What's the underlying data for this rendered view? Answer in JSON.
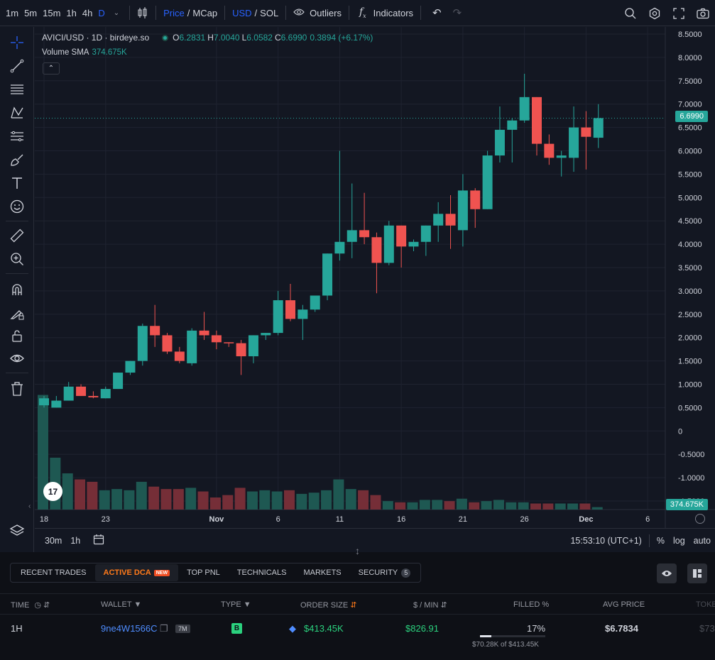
{
  "toolbar": {
    "timeframes": [
      "1m",
      "5m",
      "15m",
      "1h",
      "4h",
      "D"
    ],
    "price_label": "Price",
    "mcap_label": "MCap",
    "usd_label": "USD",
    "sol_label": "SOL",
    "outliers_label": "Outliers",
    "indicators_label": "Indicators",
    "slash": "/"
  },
  "legend": {
    "symbol": "AVICI/USD · 1D · birdeye.so",
    "o_key": "O",
    "o_val": "6.2831",
    "h_key": "H",
    "h_val": "7.0040",
    "l_key": "L",
    "l_val": "6.0582",
    "c_key": "C",
    "c_val": "6.6990",
    "change": "0.3894 (+6.17%)",
    "volume_label": "Volume SMA",
    "volume_val": "374.675K"
  },
  "price_tag": "6.6990",
  "volume_tag": "374.675K",
  "bottom_bar": {
    "left": [
      "30m",
      "1h"
    ],
    "clock": "15:53:10 (UTC+1)",
    "pct": "%",
    "log": "log",
    "auto": "auto"
  },
  "tabs": [
    {
      "label": "RECENT TRADES"
    },
    {
      "label": "ACTIVE DCA",
      "badge": "NEW"
    },
    {
      "label": "TOP PNL"
    },
    {
      "label": "TECHNICALS"
    },
    {
      "label": "MARKETS"
    },
    {
      "label": "SECURITY",
      "count": "5"
    }
  ],
  "table": {
    "headers": {
      "time": "TIME",
      "wallet": "WALLET",
      "type": "TYPE",
      "order_size": "ORDER SIZE",
      "per_min": "$ / MIN",
      "filled": "FILLED %",
      "avg_price": "AVG PRICE",
      "token": "TOKE"
    },
    "row": {
      "time": "1H",
      "wallet": "9ne4W1566C",
      "wallet_tag": "7M",
      "type": "B",
      "order_size": "$413.45K",
      "per_min": "$826.91",
      "filled": "17%",
      "filled_fraction": 0.17,
      "filled_detail": "$70.28K of $413.45K",
      "avg_price": "$6.7834",
      "token": "$73"
    }
  },
  "colors": {
    "up": "#26a69a",
    "down": "#ef5350",
    "accent": "#2962ff",
    "tab_active": "#ff7a1a"
  },
  "chart_data": {
    "type": "candlestick",
    "y_ticks": [
      "8.5000",
      "8.0000",
      "7.5000",
      "7.0000",
      "6.5000",
      "6.0000",
      "5.5000",
      "5.0000",
      "4.5000",
      "4.0000",
      "3.5000",
      "3.0000",
      "2.5000",
      "2.0000",
      "1.5000",
      "1.0000",
      "0.5000",
      "0",
      "-0.5000",
      "-1.0000",
      "-1.5000"
    ],
    "x_ticks": [
      "18",
      "23",
      "Nov",
      "6",
      "11",
      "16",
      "21",
      "26",
      "Dec",
      "6"
    ],
    "ylim": [
      -1.5,
      8.5
    ],
    "candles": [
      {
        "o": 0.55,
        "h": 0.75,
        "l": 0.5,
        "c": 0.7
      },
      {
        "o": 0.5,
        "h": 0.75,
        "l": 0.5,
        "c": 0.65
      },
      {
        "o": 0.65,
        "h": 1.05,
        "l": 0.65,
        "c": 0.95
      },
      {
        "o": 0.95,
        "h": 1.0,
        "l": 0.75,
        "c": 0.75
      },
      {
        "o": 0.75,
        "h": 0.85,
        "l": 0.7,
        "c": 0.72
      },
      {
        "o": 0.7,
        "h": 0.95,
        "l": 0.7,
        "c": 0.9
      },
      {
        "o": 0.9,
        "h": 1.25,
        "l": 0.9,
        "c": 1.25
      },
      {
        "o": 1.25,
        "h": 1.5,
        "l": 1.2,
        "c": 1.5
      },
      {
        "o": 1.5,
        "h": 2.3,
        "l": 1.4,
        "c": 2.25
      },
      {
        "o": 2.25,
        "h": 2.7,
        "l": 1.8,
        "c": 2.05
      },
      {
        "o": 2.05,
        "h": 2.1,
        "l": 1.65,
        "c": 1.7
      },
      {
        "o": 1.7,
        "h": 1.8,
        "l": 1.45,
        "c": 1.5
      },
      {
        "o": 1.45,
        "h": 2.2,
        "l": 1.4,
        "c": 2.15
      },
      {
        "o": 2.15,
        "h": 2.55,
        "l": 1.95,
        "c": 2.05
      },
      {
        "o": 2.05,
        "h": 2.15,
        "l": 1.75,
        "c": 1.9
      },
      {
        "o": 1.9,
        "h": 1.9,
        "l": 1.8,
        "c": 1.88
      },
      {
        "o": 1.88,
        "h": 1.95,
        "l": 1.2,
        "c": 1.6
      },
      {
        "o": 1.6,
        "h": 2.05,
        "l": 1.45,
        "c": 2.05
      },
      {
        "o": 2.05,
        "h": 2.1,
        "l": 1.95,
        "c": 2.1
      },
      {
        "o": 2.1,
        "h": 3.0,
        "l": 2.05,
        "c": 2.8
      },
      {
        "o": 2.8,
        "h": 3.15,
        "l": 2.35,
        "c": 2.4
      },
      {
        "o": 2.4,
        "h": 2.7,
        "l": 1.95,
        "c": 2.6
      },
      {
        "o": 2.6,
        "h": 2.9,
        "l": 2.55,
        "c": 2.9
      },
      {
        "o": 2.9,
        "h": 3.8,
        "l": 2.8,
        "c": 3.8
      },
      {
        "o": 3.8,
        "h": 6.0,
        "l": 3.65,
        "c": 4.05
      },
      {
        "o": 4.05,
        "h": 5.3,
        "l": 3.7,
        "c": 4.3
      },
      {
        "o": 4.3,
        "h": 5.1,
        "l": 4.0,
        "c": 4.15
      },
      {
        "o": 4.15,
        "h": 4.25,
        "l": 2.95,
        "c": 3.6
      },
      {
        "o": 3.6,
        "h": 4.5,
        "l": 3.55,
        "c": 4.4
      },
      {
        "o": 4.4,
        "h": 4.4,
        "l": 3.5,
        "c": 3.95
      },
      {
        "o": 3.95,
        "h": 4.1,
        "l": 3.85,
        "c": 4.05
      },
      {
        "o": 4.05,
        "h": 4.4,
        "l": 3.75,
        "c": 4.4
      },
      {
        "o": 4.4,
        "h": 4.9,
        "l": 4.05,
        "c": 4.65
      },
      {
        "o": 4.65,
        "h": 5.05,
        "l": 3.9,
        "c": 4.4
      },
      {
        "o": 4.3,
        "h": 5.5,
        "l": 3.95,
        "c": 5.15
      },
      {
        "o": 5.15,
        "h": 5.2,
        "l": 4.35,
        "c": 4.75
      },
      {
        "o": 4.75,
        "h": 6.0,
        "l": 4.75,
        "c": 5.9
      },
      {
        "o": 5.9,
        "h": 6.95,
        "l": 5.75,
        "c": 6.45
      },
      {
        "o": 6.45,
        "h": 6.7,
        "l": 5.75,
        "c": 6.65
      },
      {
        "o": 6.65,
        "h": 7.65,
        "l": 6.6,
        "c": 7.15
      },
      {
        "o": 7.15,
        "h": 7.15,
        "l": 5.9,
        "c": 6.15
      },
      {
        "o": 6.15,
        "h": 6.35,
        "l": 5.7,
        "c": 5.85
      },
      {
        "o": 5.85,
        "h": 6.0,
        "l": 5.45,
        "c": 5.9
      },
      {
        "o": 5.85,
        "h": 6.95,
        "l": 5.55,
        "c": 6.5
      },
      {
        "o": 6.5,
        "h": 6.85,
        "l": 5.6,
        "c": 6.3
      },
      {
        "o": 6.28,
        "h": 7.0,
        "l": 6.06,
        "c": 6.7
      }
    ],
    "volume": [
      0.95,
      0.43,
      0.3,
      0.25,
      0.23,
      0.16,
      0.17,
      0.16,
      0.23,
      0.19,
      0.17,
      0.17,
      0.18,
      0.15,
      0.1,
      0.12,
      0.18,
      0.15,
      0.16,
      0.15,
      0.16,
      0.13,
      0.14,
      0.16,
      0.25,
      0.17,
      0.16,
      0.12,
      0.07,
      0.06,
      0.06,
      0.08,
      0.08,
      0.07,
      0.09,
      0.06,
      0.07,
      0.08,
      0.06,
      0.06,
      0.05,
      0.05,
      0.05,
      0.05,
      0.05,
      0.02
    ]
  }
}
